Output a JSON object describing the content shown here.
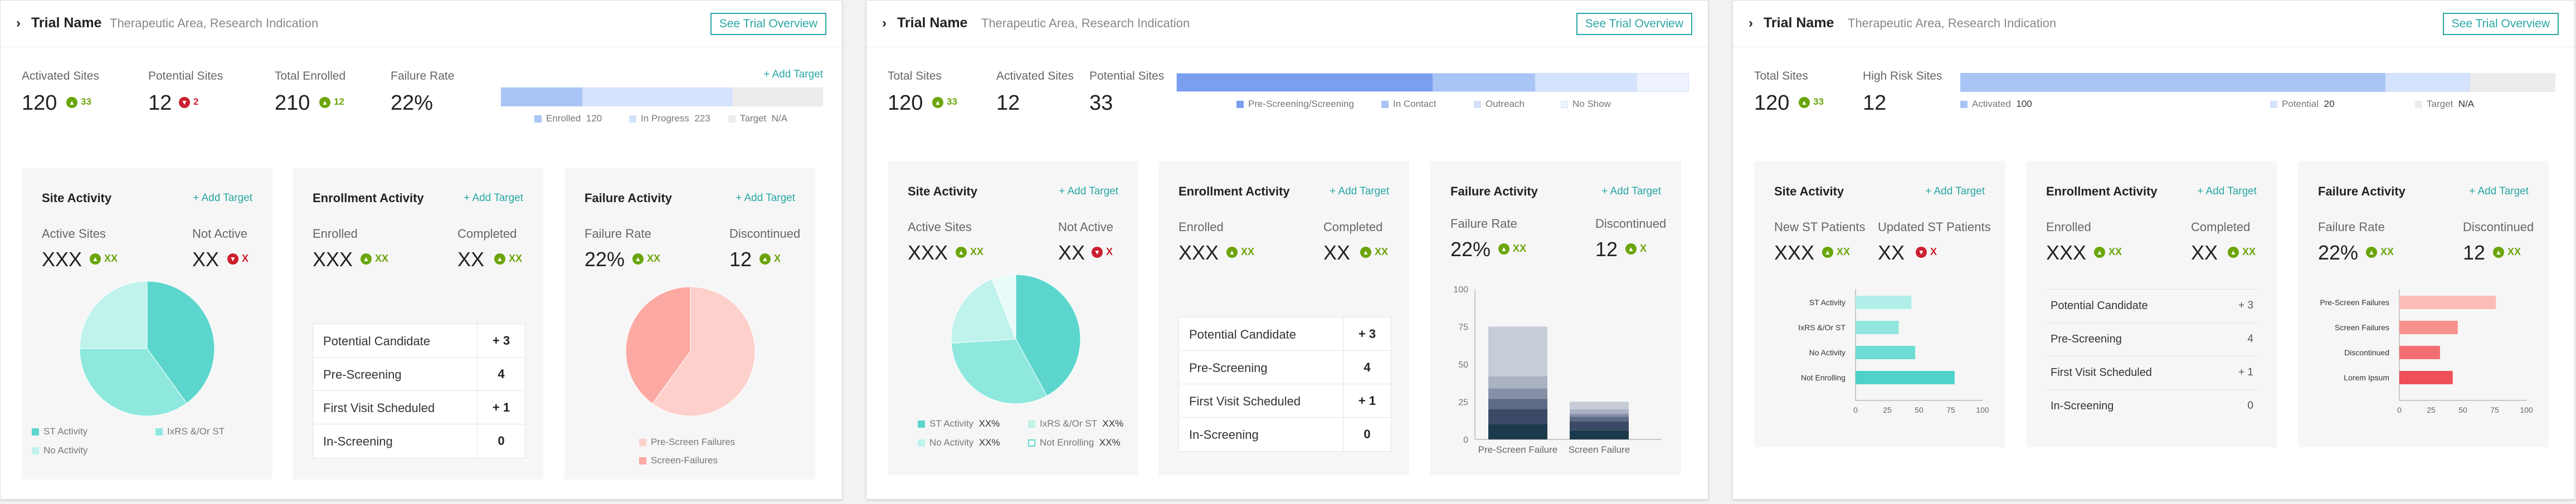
{
  "panels": [
    {
      "trial_name": "Trial Name",
      "trial_subtitle": "Therapeutic Area, Research Indication",
      "overview_button": "See Trial Overview",
      "add_target": "+ Add Target",
      "stats": [
        {
          "label": "Activated Sites",
          "value": "120",
          "delta": "33",
          "dir": "up"
        },
        {
          "label": "Potential Sites",
          "value": "12",
          "delta": "2",
          "dir": "down"
        },
        {
          "label": "Total Enrolled",
          "value": "210",
          "delta": "12",
          "dir": "up"
        },
        {
          "label": "Failure Rate",
          "value": "22%"
        }
      ],
      "progress": {
        "segments": [
          {
            "name": "Enrolled",
            "value": 120,
            "color": "#a9c5f5"
          },
          {
            "name": "In Progress",
            "value": 223,
            "color": "#d4e2fb"
          }
        ],
        "legend": [
          {
            "label": "Enrolled",
            "value": "120",
            "color": "#a9c5f5"
          },
          {
            "label": "In Progress",
            "value": "223",
            "color": "#d4e2fb"
          },
          {
            "label": "Target",
            "value": "N/A",
            "color": "#ececec"
          }
        ]
      },
      "cards": [
        {
          "title": "Site Activity",
          "add_target": "+ Add Target",
          "metrics": [
            {
              "label": "Active Sites",
              "value": "XXX",
              "delta": "XX",
              "dir": "up"
            },
            {
              "label": "Not Active",
              "value": "XX",
              "delta": "X",
              "dir": "down"
            }
          ],
          "legend": [
            "ST Activity",
            "IxRS &/Or ST",
            "No Activity"
          ]
        },
        {
          "title": "Enrollment Activity",
          "add_target": "+ Add Target",
          "metrics": [
            {
              "label": "Enrolled",
              "value": "XXX",
              "delta": "XX",
              "dir": "up"
            },
            {
              "label": "Completed",
              "value": "XX",
              "delta": "XX",
              "dir": "up"
            }
          ],
          "table": [
            {
              "label": "Potential Candidate",
              "value": "+ 3"
            },
            {
              "label": "Pre-Screening",
              "value": "4"
            },
            {
              "label": "First Visit Scheduled",
              "value": "+ 1"
            },
            {
              "label": "In-Screening",
              "value": "0"
            }
          ]
        },
        {
          "title": "Failure Activity",
          "add_target": "+ Add Target",
          "metrics": [
            {
              "label": "Failure Rate",
              "value": "22%",
              "delta": "XX",
              "dir": "up"
            },
            {
              "label": "Discontinued",
              "value": "12",
              "delta": "X",
              "dir": "up"
            }
          ],
          "legend": [
            "Pre-Screen Failures",
            "Screen-Failures"
          ]
        }
      ]
    },
    {
      "trial_name": "Trial Name",
      "trial_subtitle": "Therapeutic Area, Research Indication",
      "overview_button": "See Trial Overview",
      "stats": [
        {
          "label": "Total Sites",
          "value": "120",
          "delta": "33",
          "dir": "up"
        },
        {
          "label": "Activated Sites",
          "value": "12"
        },
        {
          "label": "Potential Sites",
          "value": "33"
        }
      ],
      "progress": {
        "segments": [
          {
            "name": "Pre-Screening/Screening",
            "value": 50,
            "color": "#7a9ef0"
          },
          {
            "name": "In Contact",
            "value": 20,
            "color": "#a9c5f5"
          },
          {
            "name": "Outreach",
            "value": 20,
            "color": "#d4e2fb"
          },
          {
            "name": "No Show",
            "value": 10,
            "color": "#eef2fc"
          }
        ],
        "legend": [
          {
            "label": "Pre-Screening/Screening",
            "color": "#7a9ef0"
          },
          {
            "label": "In Contact",
            "color": "#a9c5f5"
          },
          {
            "label": "Outreach",
            "color": "#d4e2fb"
          },
          {
            "label": "No Show",
            "color": "#eef2fc"
          }
        ]
      },
      "cards": [
        {
          "title": "Site Activity",
          "add_target": "+ Add Target",
          "metrics": [
            {
              "label": "Active Sites",
              "value": "XXX",
              "delta": "XX",
              "dir": "up"
            },
            {
              "label": "Not Active",
              "value": "XX",
              "delta": "X",
              "dir": "down"
            }
          ],
          "legend": [
            {
              "label": "ST Activity",
              "value": "XX%"
            },
            {
              "label": "IxRS &/Or ST",
              "value": "XX%"
            },
            {
              "label": "No Activity",
              "value": "XX%"
            },
            {
              "label": "Not Enrolling",
              "value": "XX%"
            }
          ]
        },
        {
          "title": "Enrollment Activity",
          "add_target": "+ Add Target",
          "metrics": [
            {
              "label": "Enrolled",
              "value": "XXX",
              "delta": "XX",
              "dir": "up"
            },
            {
              "label": "Completed",
              "value": "XX",
              "delta": "XX",
              "dir": "up"
            }
          ],
          "table": [
            {
              "label": "Potential Candidate",
              "value": "+ 3"
            },
            {
              "label": "Pre-Screening",
              "value": "4"
            },
            {
              "label": "First Visit Scheduled",
              "value": "+ 1"
            },
            {
              "label": "In-Screening",
              "value": "0"
            }
          ]
        },
        {
          "title": "Failure Activity",
          "add_target": "+ Add Target",
          "metrics": [
            {
              "label": "Failure Rate",
              "value": "22%",
              "delta": "XX",
              "dir": "up"
            },
            {
              "label": "Discontinued",
              "value": "12",
              "delta": "X",
              "dir": "up"
            }
          ]
        }
      ]
    },
    {
      "trial_name": "Trial Name",
      "trial_subtitle": "Therapeutic Area, Research Indication",
      "overview_button": "See Trial Overview",
      "stats": [
        {
          "label": "Total Sites",
          "value": "120",
          "delta": "33",
          "dir": "up"
        },
        {
          "label": "High Risk Sites",
          "value": "12"
        }
      ],
      "progress": {
        "segments": [
          {
            "name": "Activated",
            "value": 100,
            "color": "#a9c5f5"
          },
          {
            "name": "Potential",
            "value": 20,
            "color": "#d4e2fb"
          },
          {
            "name": "Target",
            "value": 20,
            "color": "#ececec"
          }
        ],
        "legend": [
          {
            "label": "Activated",
            "value": "100",
            "color": "#a9c5f5"
          },
          {
            "label": "Potential",
            "value": "20",
            "color": "#d4e2fb"
          },
          {
            "label": "Target",
            "value": "N/A",
            "color": "#ececec"
          }
        ]
      },
      "cards": [
        {
          "title": "Site Activity",
          "add_target": "+ Add Target",
          "metrics": [
            {
              "label": "New ST Patients",
              "value": "XXX",
              "delta": "XX",
              "dir": "up"
            },
            {
              "label": "Updated ST Patients",
              "value": "XX",
              "delta": "X",
              "dir": "down"
            }
          ]
        },
        {
          "title": "Enrollment Activity",
          "add_target": "+ Add Target",
          "metrics": [
            {
              "label": "Enrolled",
              "value": "XXX",
              "delta": "XX",
              "dir": "up"
            },
            {
              "label": "Completed",
              "value": "XX",
              "delta": "XX",
              "dir": "up"
            }
          ],
          "table": [
            {
              "label": "Potential Candidate",
              "value": "+ 3"
            },
            {
              "label": "Pre-Screening",
              "value": "4"
            },
            {
              "label": "First Visit Scheduled",
              "value": "+ 1"
            },
            {
              "label": "In-Screening",
              "value": "0"
            }
          ]
        },
        {
          "title": "Failure Activity",
          "add_target": "+ Add Target",
          "metrics": [
            {
              "label": "Failure Rate",
              "value": "22%",
              "delta": "XX",
              "dir": "up"
            },
            {
              "label": "Discontinued",
              "value": "12",
              "delta": "XX",
              "dir": "up"
            }
          ]
        }
      ]
    }
  ],
  "colors": {
    "accent": "#2aa7a5",
    "up": "#6aa50a",
    "down": "#cc1f2f",
    "teal_dark": "#5cd6cd",
    "teal_mid": "#8ee8de",
    "teal_light": "#bff3ec",
    "salmon_dark": "#fca9a3",
    "salmon_light": "#fdd0cc"
  },
  "chart_data": [
    {
      "type": "pie",
      "labels": [
        "ST Activity",
        "IxRS &/Or ST",
        "No Activity"
      ],
      "values": [
        40,
        35,
        25
      ],
      "colors": [
        "#5cd6cd",
        "#8ee8de",
        "#bff3ec"
      ]
    },
    {
      "type": "pie",
      "labels": [
        "Pre-Screen Failures",
        "Screen-Failures"
      ],
      "values": [
        60,
        40
      ],
      "colors": [
        "#fdd0cc",
        "#fca9a3"
      ]
    },
    {
      "type": "pie",
      "labels": [
        "ST Activity",
        "IxRS &/Or ST",
        "No Activity",
        "Not Enrolling"
      ],
      "values": [
        42,
        32,
        20,
        6
      ],
      "colors": [
        "#5cd6cd",
        "#8ee8de",
        "#bff3ec",
        "#e8fbf8"
      ]
    },
    {
      "type": "bar",
      "stacked": true,
      "categories": [
        "Pre-Screen Failure",
        "Screen Failure"
      ],
      "ylim": [
        0,
        100
      ],
      "yticks": [
        "0",
        "25",
        "50",
        "75",
        "100"
      ],
      "series": [
        {
          "values": [
            10,
            6
          ],
          "color": "#1b3a4b"
        },
        {
          "values": [
            10,
            6
          ],
          "color": "#3a4a66"
        },
        {
          "values": [
            7,
            3
          ],
          "color": "#5e6b85"
        },
        {
          "values": [
            7,
            2
          ],
          "color": "#8590a6"
        },
        {
          "values": [
            8,
            3
          ],
          "color": "#aab2c4"
        },
        {
          "values": [
            33,
            5
          ],
          "color": "#c6ccd8"
        }
      ]
    },
    {
      "type": "bar",
      "orientation": "horizontal",
      "categories": [
        "ST Activity",
        "IxRS &/Or ST",
        "No Activity",
        "Not Enrolling"
      ],
      "values": [
        44,
        34,
        47,
        78
      ],
      "colors": [
        "#b2efea",
        "#92e6df",
        "#6fdcd4",
        "#4fd2c8"
      ],
      "xlim": [
        0,
        100
      ],
      "xticks": [
        "0",
        "25",
        "50",
        "75",
        "100"
      ]
    },
    {
      "type": "bar",
      "orientation": "horizontal",
      "categories": [
        "Pre-Screen Failures",
        "Screen Failures",
        "Discontinued",
        "Lorem Ipsum"
      ],
      "values": [
        76,
        46,
        32,
        42
      ],
      "colors": [
        "#fcbcb6",
        "#f7918e",
        "#f36e73",
        "#ee4f58"
      ],
      "xlim": [
        0,
        100
      ],
      "xticks": [
        "0",
        "25",
        "50",
        "75",
        "100"
      ]
    }
  ]
}
